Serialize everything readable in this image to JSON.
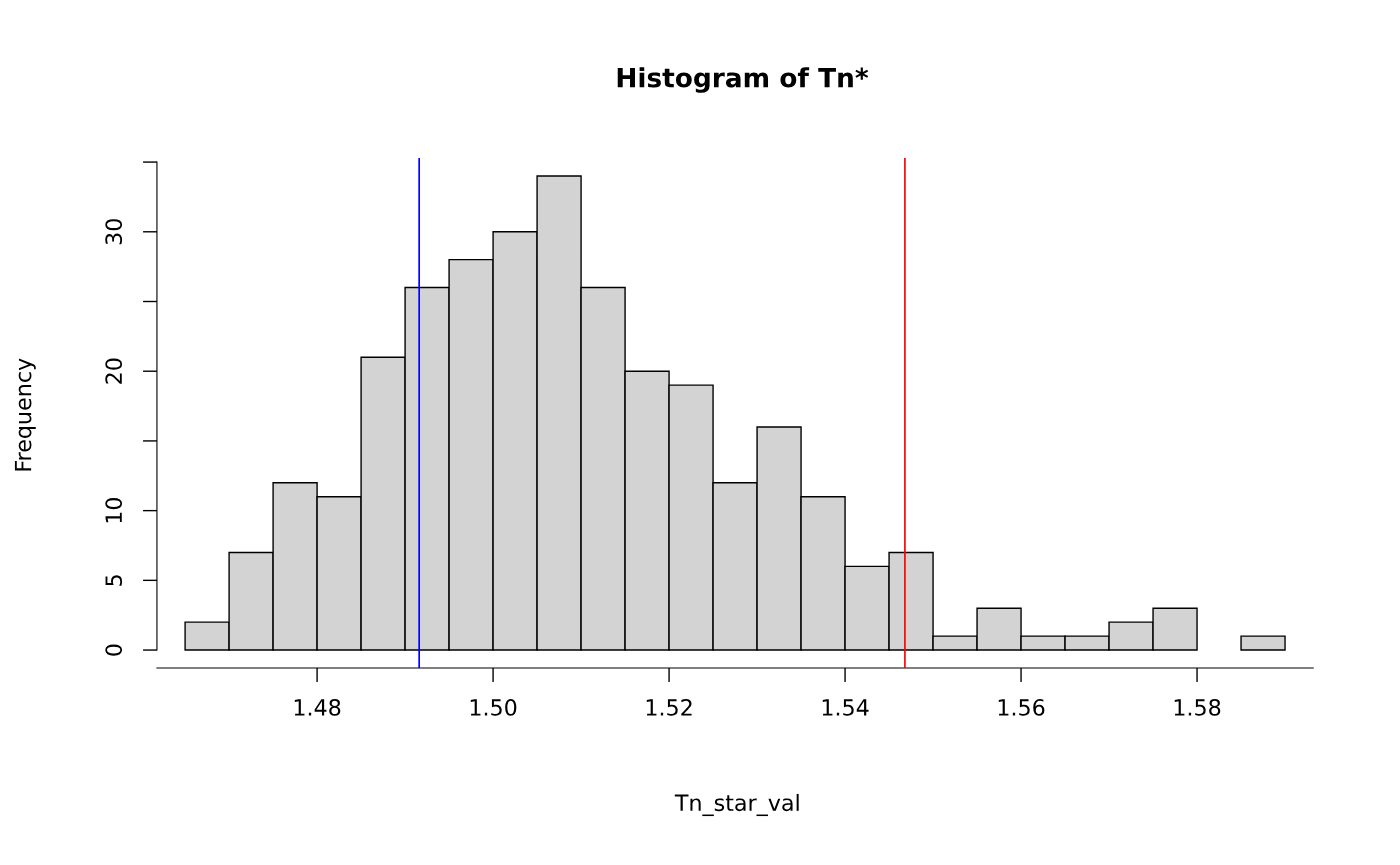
{
  "chart_data": {
    "type": "histogram",
    "title": "Histogram of Tn*",
    "xlabel": "Tn_star_val",
    "ylabel": "Frequency",
    "bins": [
      1.465,
      1.47,
      1.475,
      1.48,
      1.485,
      1.49,
      1.495,
      1.5,
      1.505,
      1.51,
      1.515,
      1.52,
      1.525,
      1.53,
      1.535,
      1.54,
      1.545,
      1.55,
      1.555,
      1.56,
      1.565,
      1.57,
      1.575,
      1.58,
      1.585,
      1.59
    ],
    "values": [
      2,
      7,
      12,
      11,
      21,
      26,
      28,
      30,
      34,
      26,
      20,
      19,
      12,
      16,
      11,
      6,
      7,
      1,
      3,
      1,
      1,
      2,
      3,
      0,
      1
    ],
    "color": "#d3d3d3",
    "xlim": [
      1.4618,
      1.5932
    ],
    "ylim": [
      -1.29,
      35.29
    ],
    "xticks": [
      {
        "value": 1.48,
        "label": "1.48"
      },
      {
        "value": 1.5,
        "label": "1.50"
      },
      {
        "value": 1.52,
        "label": "1.52"
      },
      {
        "value": 1.54,
        "label": "1.54"
      },
      {
        "value": 1.56,
        "label": "1.56"
      },
      {
        "value": 1.58,
        "label": "1.58"
      }
    ],
    "yticks": [
      0,
      5,
      10,
      {
        "value": 15,
        "label": null
      },
      20,
      {
        "value": 25,
        "label": null
      },
      30,
      {
        "value": 35,
        "label": null
      }
    ],
    "ref_lines": [
      {
        "axis": "x",
        "value": 1.4916,
        "color": "#0000ff"
      },
      {
        "axis": "x",
        "value": 1.5468,
        "color": "#ff0000"
      }
    ],
    "grid": false,
    "legend": false
  }
}
